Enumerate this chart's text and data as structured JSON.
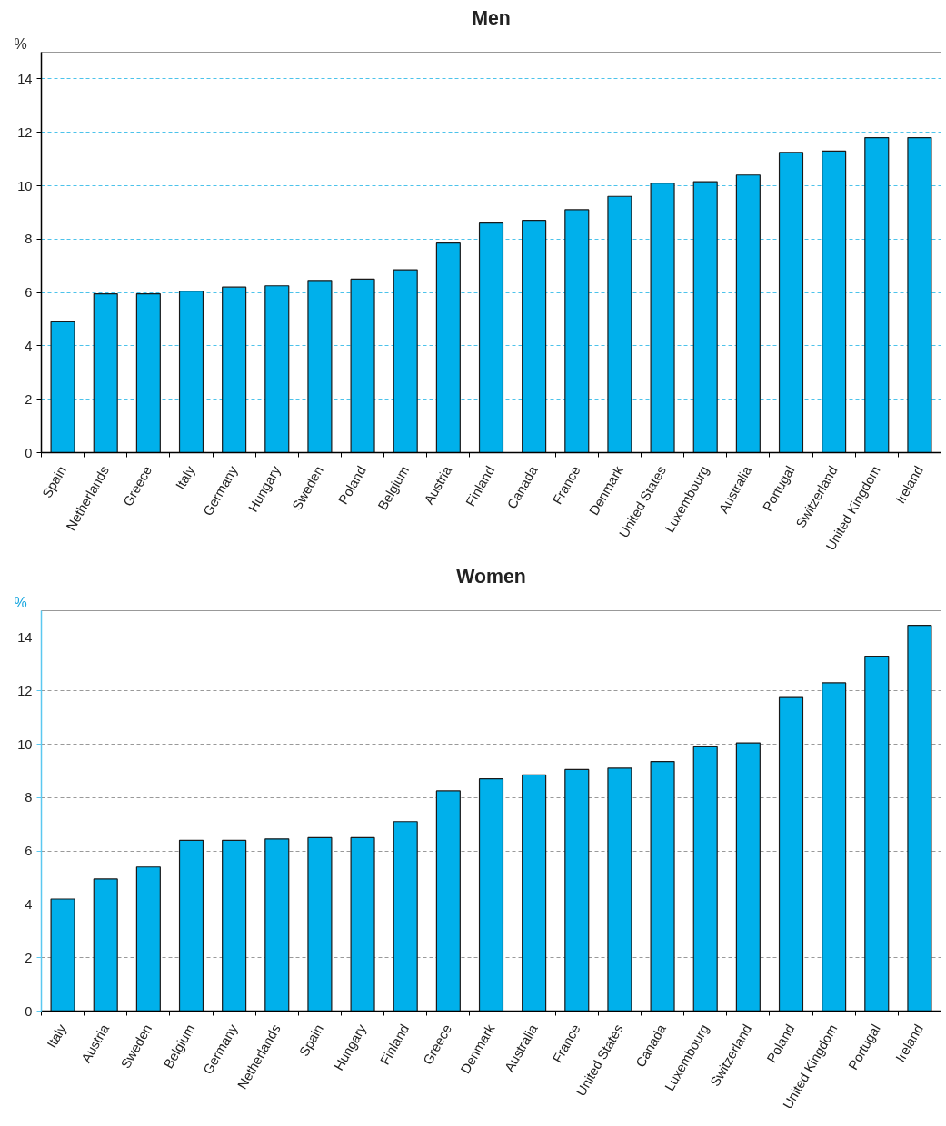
{
  "chart_data": [
    {
      "type": "bar",
      "title": "Men",
      "ylabel": "%",
      "categories": [
        "Spain",
        "Netherlands",
        "Greece",
        "Italy",
        "Germany",
        "Hungary",
        "Sweden",
        "Poland",
        "Belgium",
        "Austria",
        "Finland",
        "Canada",
        "France",
        "Denmark",
        "United States",
        "Luxembourg",
        "Australia",
        "Portugal",
        "Switzerland",
        "United Kingdom",
        "Ireland"
      ],
      "values": [
        4.9,
        5.95,
        5.95,
        6.05,
        6.2,
        6.25,
        6.45,
        6.5,
        6.85,
        7.85,
        8.6,
        8.7,
        9.1,
        9.6,
        10.1,
        10.15,
        10.4,
        11.25,
        11.3,
        11.8,
        11.8
      ],
      "color": "#00b0eb",
      "ylim": [
        0,
        15
      ],
      "yticks": [
        0,
        2,
        4,
        6,
        8,
        10,
        12,
        14
      ],
      "grid": "y"
    },
    {
      "type": "bar",
      "title": "Women",
      "ylabel": "%",
      "categories": [
        "Italy",
        "Austria",
        "Sweden",
        "Belgium",
        "Germany",
        "Netherlands",
        "Spain",
        "Hungary",
        "Finland",
        "Greece",
        "Denmark",
        "Australia",
        "France",
        "United States",
        "Canada",
        "Luxembourg",
        "Switzerland",
        "Poland",
        "United Kingdom",
        "Portugal",
        "Ireland"
      ],
      "values": [
        4.2,
        4.95,
        5.4,
        6.4,
        6.4,
        6.45,
        6.5,
        6.5,
        7.1,
        8.25,
        8.7,
        8.85,
        9.05,
        9.1,
        9.35,
        9.9,
        10.05,
        11.75,
        12.3,
        13.3,
        14.45
      ],
      "color": "#00b0eb",
      "ylim": [
        0,
        15
      ],
      "yticks": [
        0,
        2,
        4,
        6,
        8,
        10,
        12,
        14
      ],
      "grid": "y"
    }
  ]
}
